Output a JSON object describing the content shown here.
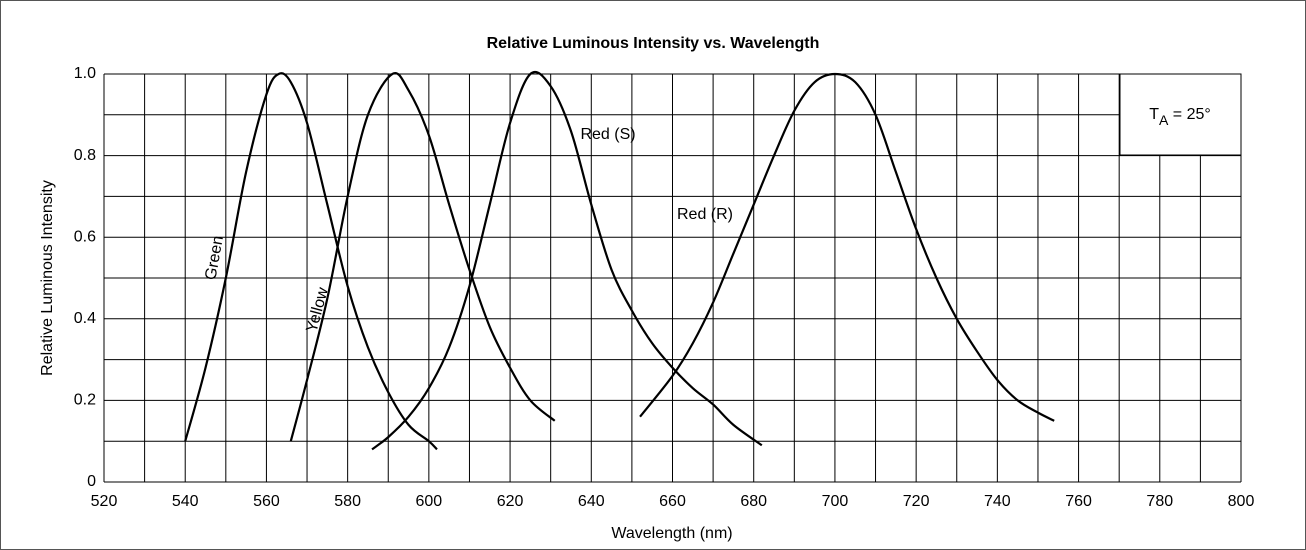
{
  "chart_data": {
    "type": "line",
    "title": "Relative Luminous Intensity vs. Wavelength",
    "xlabel": "Wavelength  (nm)",
    "ylabel": "Relative Luminous Intensity",
    "annotation": {
      "main": "T",
      "sub": "A",
      "rest": " = 25°"
    },
    "xlim": [
      520,
      800
    ],
    "ylim": [
      0,
      1
    ],
    "xticks": [
      520,
      540,
      560,
      580,
      600,
      620,
      640,
      660,
      680,
      700,
      720,
      740,
      760,
      780,
      800
    ],
    "yticks": [
      0,
      0.2,
      0.4,
      0.6,
      0.8,
      {
        "value": 1,
        "label": "1.0"
      }
    ],
    "x_minor_ticks": [
      530,
      550,
      570,
      590,
      610,
      630,
      650,
      670,
      690,
      710,
      730,
      750,
      770,
      790
    ],
    "y_minor_ticks": [
      0.1,
      0.3,
      0.5,
      0.7,
      0.9
    ],
    "grid": true,
    "series": [
      {
        "name": "Green",
        "color": "#000000",
        "x": [
          540,
          545,
          550,
          555,
          560,
          563,
          566,
          570,
          575,
          580,
          585,
          590,
          595,
          600,
          602
        ],
        "values": [
          0.1,
          0.28,
          0.5,
          0.76,
          0.95,
          1.0,
          0.98,
          0.88,
          0.68,
          0.48,
          0.33,
          0.22,
          0.14,
          0.1,
          0.08
        ]
      },
      {
        "name": "Yellow",
        "color": "#000000",
        "x": [
          566,
          570,
          575,
          580,
          585,
          591,
          595,
          600,
          605,
          610,
          615,
          620,
          625,
          631
        ],
        "values": [
          0.1,
          0.25,
          0.45,
          0.7,
          0.9,
          1.0,
          0.96,
          0.85,
          0.68,
          0.52,
          0.38,
          0.28,
          0.2,
          0.15
        ]
      },
      {
        "name": "Red (S)",
        "color": "#000000",
        "x": [
          586,
          590,
          595,
          600,
          605,
          610,
          615,
          620,
          625,
          630,
          635,
          640,
          645,
          650,
          655,
          660,
          665,
          670,
          675,
          682
        ],
        "values": [
          0.08,
          0.11,
          0.16,
          0.23,
          0.33,
          0.48,
          0.68,
          0.88,
          1.0,
          0.97,
          0.86,
          0.68,
          0.52,
          0.42,
          0.34,
          0.28,
          0.23,
          0.19,
          0.14,
          0.09
        ]
      },
      {
        "name": "Red (R)",
        "color": "#000000",
        "x": [
          652,
          660,
          665,
          670,
          675,
          680,
          685,
          690,
          695,
          700,
          705,
          710,
          715,
          720,
          725,
          730,
          735,
          740,
          745,
          750,
          754
        ],
        "values": [
          0.16,
          0.26,
          0.34,
          0.44,
          0.56,
          0.68,
          0.8,
          0.91,
          0.98,
          1.0,
          0.98,
          0.9,
          0.76,
          0.62,
          0.5,
          0.4,
          0.32,
          0.25,
          0.2,
          0.17,
          0.15
        ]
      }
    ]
  }
}
